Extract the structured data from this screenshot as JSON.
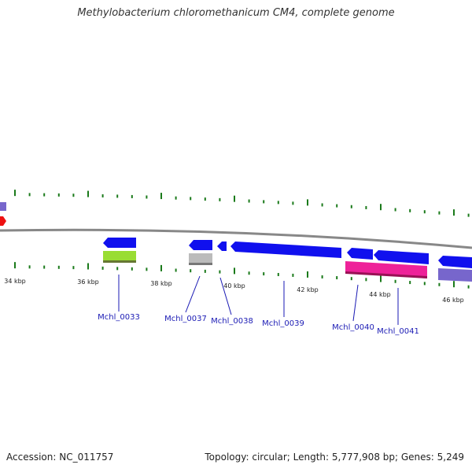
{
  "title": "Methylobacterium chloromethanicum CM4, complete genome",
  "footer": {
    "accession": "Accession: NC_011757",
    "summary": "Topology: circular; Length: 5,777,908 bp; Genes: 5,249"
  },
  "colors": {
    "backbone": "#888888",
    "ticks": "#1a7a1a",
    "cds": "#1010ee",
    "label": "#1a1ab4",
    "rna_green": "#99dd33",
    "rna_gray": "#bbbbbb",
    "pink": "#ee2299",
    "purple": "#7766cc",
    "red": "#ee1111"
  },
  "scale": {
    "unit": "kbp",
    "labels": [
      "34 kbp",
      "36 kbp",
      "38 kbp",
      "40 kbp",
      "42 kbp",
      "44 kbp",
      "46 kbp"
    ]
  },
  "genes": [
    {
      "label": "Mchl_0033"
    },
    {
      "label": "Mchl_0037"
    },
    {
      "label": "Mchl_0038"
    },
    {
      "label": "Mchl_0039"
    },
    {
      "label": "Mchl_0040"
    },
    {
      "label": "Mchl_0041"
    }
  ]
}
